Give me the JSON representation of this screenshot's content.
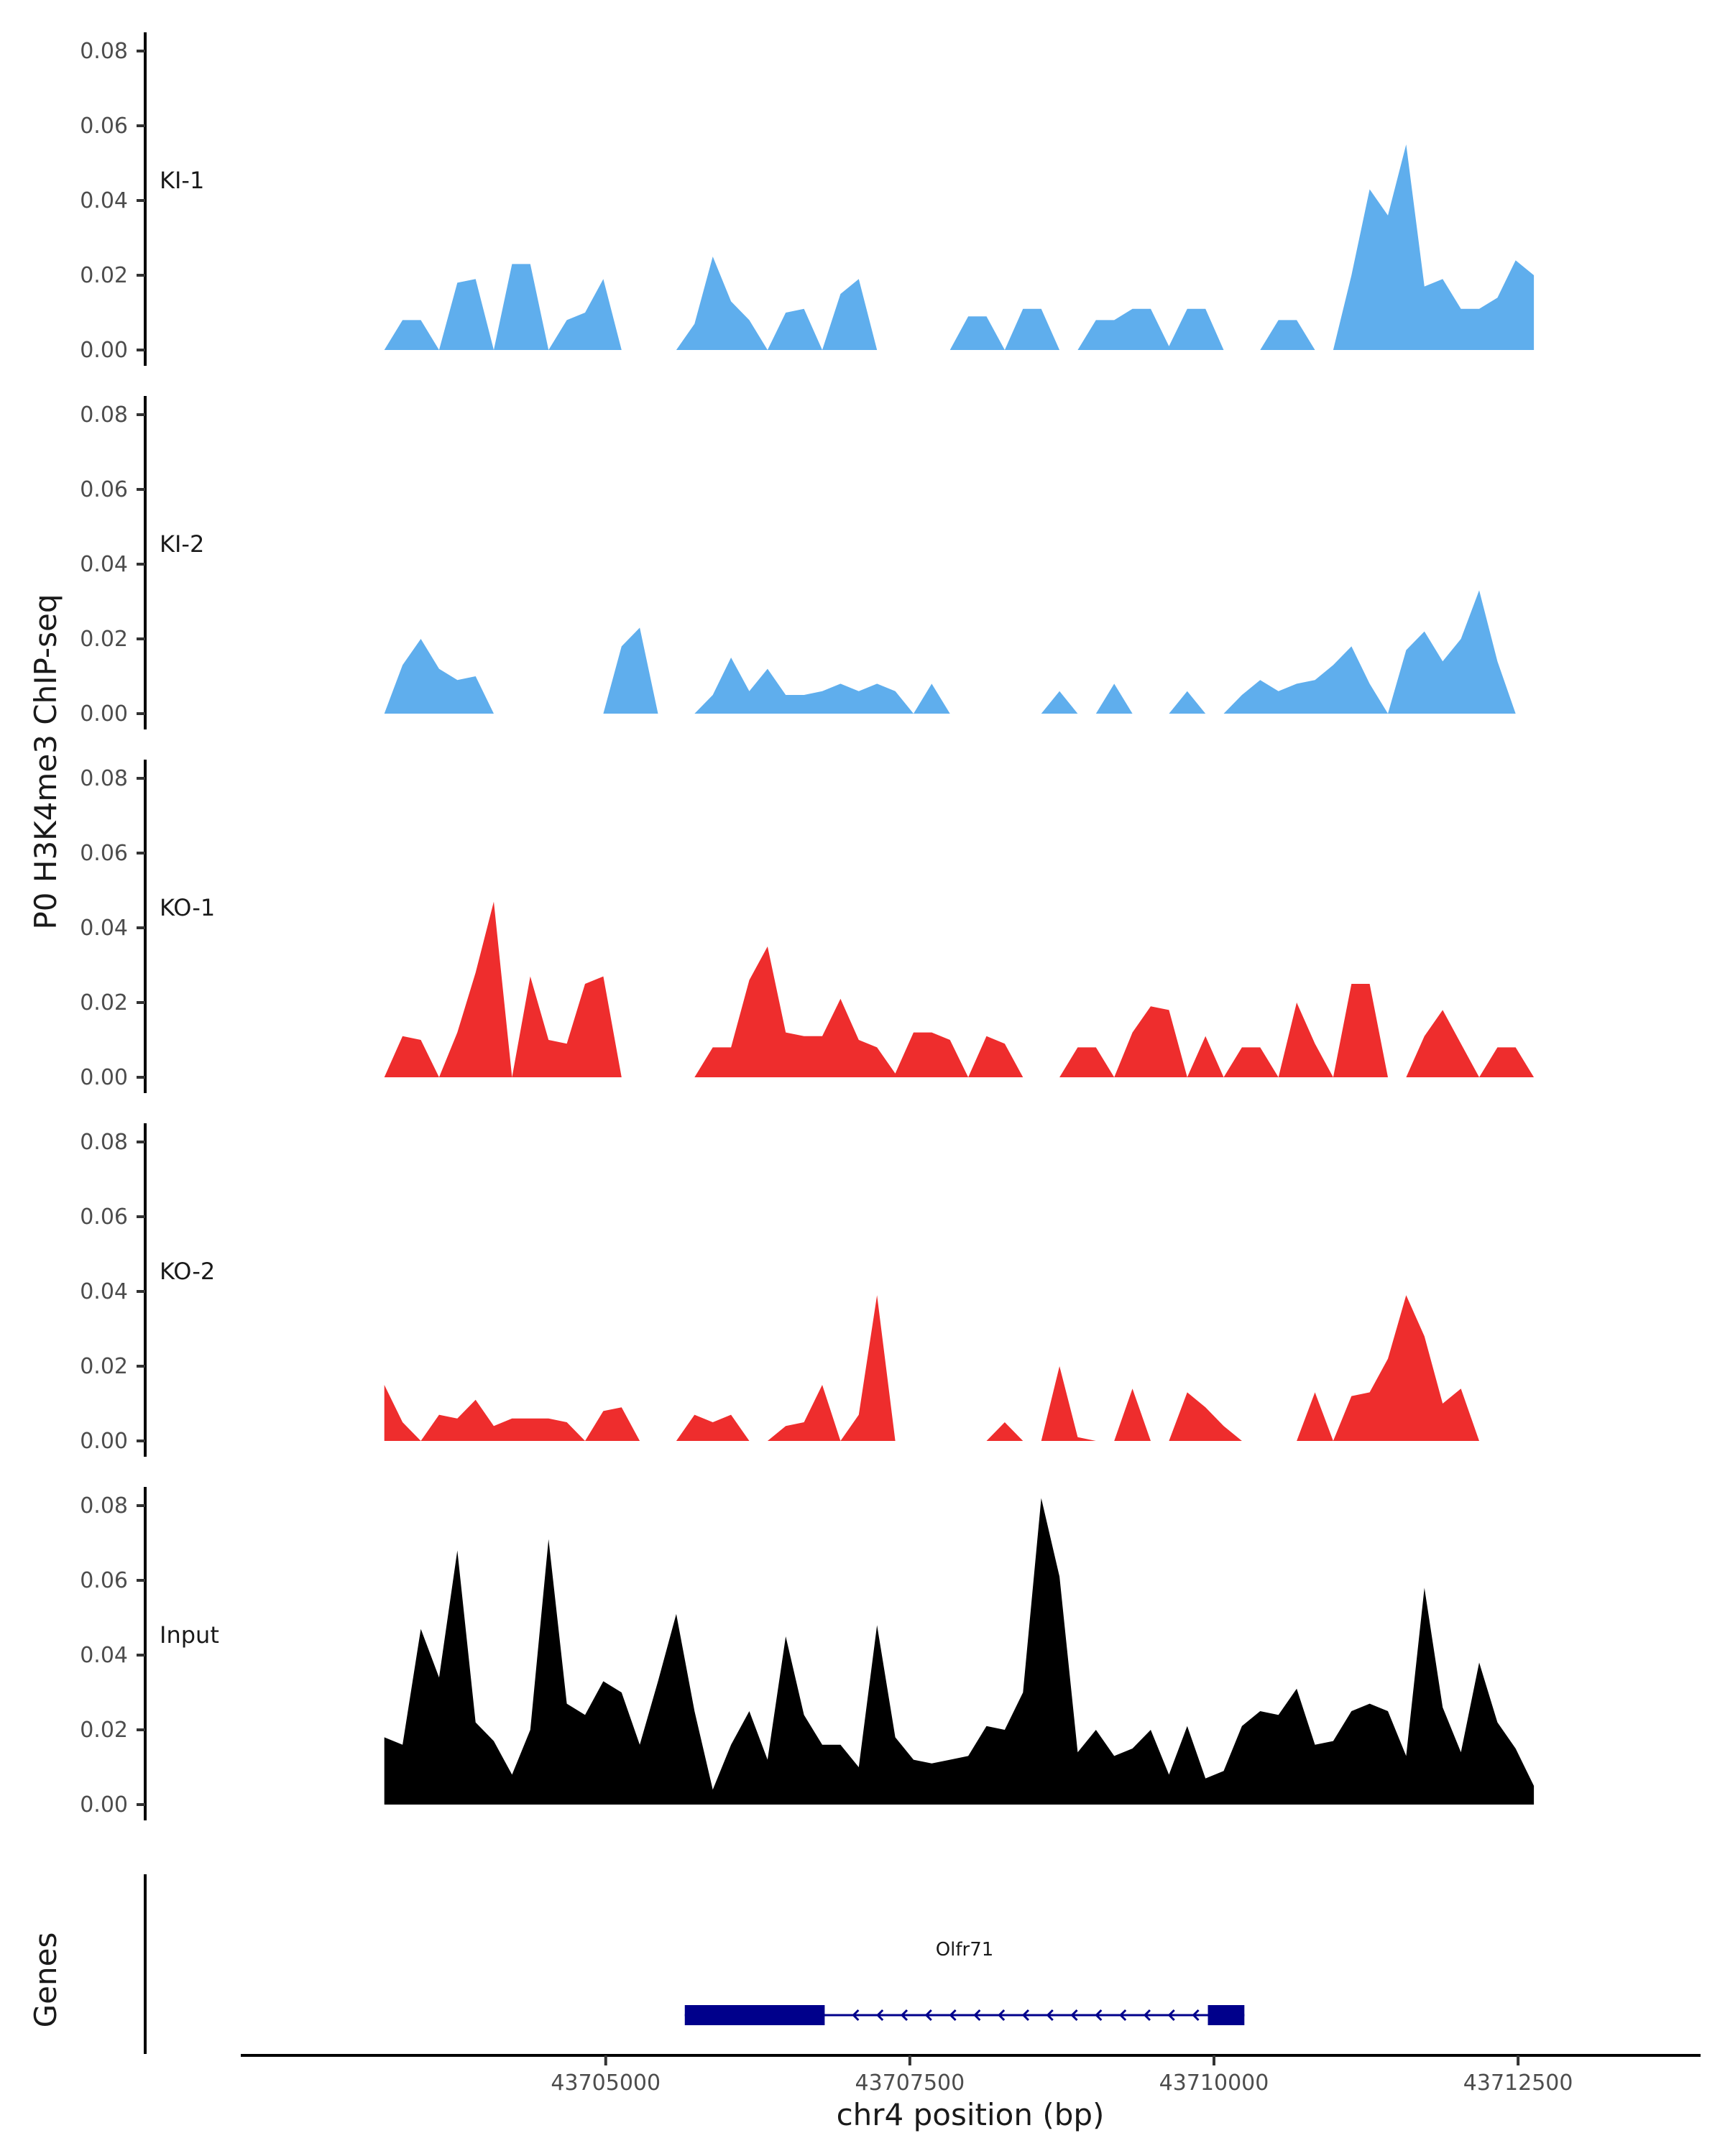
{
  "chart_data": {
    "type": "area",
    "ylabel": "P0 H3K4me3 ChIP-seq",
    "xlabel": "chr4 position (bp)",
    "xlim": [
      43702000,
      43714000
    ],
    "ylim": [
      0,
      0.085
    ],
    "yticks": [
      "0.00",
      "0.02",
      "0.04",
      "0.06",
      "0.08"
    ],
    "xticks": [
      {
        "value": 43705000,
        "label": "43705000"
      },
      {
        "value": 43707500,
        "label": "43707500"
      },
      {
        "value": 43710000,
        "label": "43710000"
      },
      {
        "value": 43712500,
        "label": "43712500"
      }
    ],
    "colors": {
      "KI": "#5faeed",
      "KO": "#ee2d2d",
      "Input": "#000000",
      "gene": "#00008b"
    },
    "tracks": [
      {
        "name": "KI-1",
        "color": "#5faeed",
        "x": [
          43703180,
          43703330,
          43703480,
          43703630,
          43703780,
          43703930,
          43704080,
          43704230,
          43704380,
          43704530,
          43704680,
          43704830,
          43704980,
          43705130,
          43705280,
          43705430,
          43705580,
          43705730,
          43705880,
          43706030,
          43706180,
          43706330,
          43706480,
          43706630,
          43706780,
          43706930,
          43707080,
          43707230,
          43707380,
          43707530,
          43707680,
          43707830,
          43707980,
          43708130,
          43708280,
          43708430,
          43708580,
          43708730,
          43708880,
          43709030,
          43709180,
          43709330,
          43709480,
          43709630,
          43709780,
          43709930,
          43710080,
          43710230,
          43710380,
          43710530,
          43710680,
          43710830,
          43710980,
          43711130,
          43711280,
          43711430,
          43711580,
          43711730,
          43711880,
          43712030,
          43712180,
          43712330,
          43712480,
          43712630
        ],
        "y": [
          0,
          0.008,
          0.008,
          0,
          0.018,
          0.019,
          0,
          0.023,
          0.023,
          0,
          0.008,
          0.01,
          0.019,
          0,
          0,
          0,
          0,
          0.007,
          0.025,
          0.013,
          0.008,
          0,
          0.01,
          0.011,
          0,
          0.015,
          0.019,
          0,
          0,
          0,
          0,
          0,
          0.009,
          0.009,
          0,
          0.011,
          0.011,
          0,
          0,
          0.008,
          0.008,
          0.011,
          0.011,
          0.001,
          0.011,
          0.011,
          0,
          0,
          0,
          0.008,
          0.008,
          0,
          0,
          0.02,
          0.043,
          0.036,
          0.055,
          0.017,
          0.019,
          0.011,
          0.011,
          0.014,
          0.024,
          0.02
        ]
      },
      {
        "name": "KI-2",
        "color": "#5faeed",
        "x": [
          43703180,
          43703330,
          43703480,
          43703630,
          43703780,
          43703930,
          43704080,
          43704230,
          43704380,
          43704530,
          43704680,
          43704830,
          43704980,
          43705130,
          43705280,
          43705430,
          43705580,
          43705730,
          43705880,
          43706030,
          43706180,
          43706330,
          43706480,
          43706630,
          43706780,
          43706930,
          43707080,
          43707230,
          43707380,
          43707530,
          43707680,
          43707830,
          43707980,
          43708130,
          43708280,
          43708430,
          43708580,
          43708730,
          43708880,
          43709030,
          43709180,
          43709330,
          43709480,
          43709630,
          43709780,
          43709930,
          43710080,
          43710230,
          43710380,
          43710530,
          43710680,
          43710830,
          43710980,
          43711130,
          43711280,
          43711430,
          43711580,
          43711730,
          43711880,
          43712030,
          43712180,
          43712330,
          43712480,
          43712630
        ],
        "y": [
          0,
          0.013,
          0.02,
          0.012,
          0.009,
          0.01,
          0,
          0,
          0,
          0,
          0,
          0,
          0,
          0.018,
          0.023,
          0,
          0,
          0,
          0.005,
          0.015,
          0.006,
          0.012,
          0.005,
          0.005,
          0.006,
          0.008,
          0.006,
          0.008,
          0.006,
          0,
          0.008,
          0,
          0,
          0,
          0,
          0,
          0,
          0.006,
          0,
          0,
          0.008,
          0,
          0,
          0,
          0.006,
          0,
          0,
          0.005,
          0.009,
          0.006,
          0.008,
          0.009,
          0.013,
          0.018,
          0.008,
          0,
          0.017,
          0.022,
          0.014,
          0.02,
          0.033,
          0.014,
          0,
          0
        ]
      },
      {
        "name": "KO-1",
        "color": "#ee2d2d",
        "x": [
          43703180,
          43703330,
          43703480,
          43703630,
          43703780,
          43703930,
          43704080,
          43704230,
          43704380,
          43704530,
          43704680,
          43704830,
          43704980,
          43705130,
          43705280,
          43705430,
          43705580,
          43705730,
          43705880,
          43706030,
          43706180,
          43706330,
          43706480,
          43706630,
          43706780,
          43706930,
          43707080,
          43707230,
          43707380,
          43707530,
          43707680,
          43707830,
          43707980,
          43708130,
          43708280,
          43708430,
          43708580,
          43708730,
          43708880,
          43709030,
          43709180,
          43709330,
          43709480,
          43709630,
          43709780,
          43709930,
          43710080,
          43710230,
          43710380,
          43710530,
          43710680,
          43710830,
          43710980,
          43711130,
          43711280,
          43711430,
          43711580,
          43711730,
          43711880,
          43712030,
          43712180,
          43712330,
          43712480,
          43712630
        ],
        "y": [
          0,
          0.011,
          0.01,
          0,
          0.012,
          0.028,
          0.047,
          0,
          0.027,
          0.01,
          0.009,
          0.025,
          0.027,
          0,
          0,
          0,
          0,
          0,
          0.008,
          0.008,
          0.026,
          0.035,
          0.012,
          0.011,
          0.011,
          0.021,
          0.01,
          0.008,
          0.001,
          0.012,
          0.012,
          0.01,
          0,
          0.011,
          0.009,
          0,
          0,
          0,
          0.008,
          0.008,
          0,
          0.012,
          0.019,
          0.018,
          0,
          0.011,
          0,
          0.008,
          0.008,
          0,
          0.02,
          0.009,
          0,
          0.025,
          0.025,
          0,
          0,
          0.011,
          0.018,
          0.009,
          0,
          0.008,
          0.008,
          0
        ]
      },
      {
        "name": "KO-2",
        "color": "#ee2d2d",
        "x": [
          43703180,
          43703330,
          43703480,
          43703630,
          43703780,
          43703930,
          43704080,
          43704230,
          43704380,
          43704530,
          43704680,
          43704830,
          43704980,
          43705130,
          43705280,
          43705430,
          43705580,
          43705730,
          43705880,
          43706030,
          43706180,
          43706330,
          43706480,
          43706630,
          43706780,
          43706930,
          43707080,
          43707230,
          43707380,
          43707530,
          43707680,
          43707830,
          43707980,
          43708130,
          43708280,
          43708430,
          43708580,
          43708730,
          43708880,
          43709030,
          43709180,
          43709330,
          43709480,
          43709630,
          43709780,
          43709930,
          43710080,
          43710230,
          43710380,
          43710530,
          43710680,
          43710830,
          43710980,
          43711130,
          43711280,
          43711430,
          43711580,
          43711730,
          43711880,
          43712030,
          43712180,
          43712330,
          43712480,
          43712630
        ],
        "y": [
          0.015,
          0.005,
          0,
          0.007,
          0.006,
          0.011,
          0.004,
          0.006,
          0.006,
          0.006,
          0.005,
          0,
          0.008,
          0.009,
          0,
          0,
          0,
          0.007,
          0.005,
          0.007,
          0,
          0,
          0.004,
          0.005,
          0.015,
          0,
          0.007,
          0.039,
          0,
          0,
          0,
          0,
          0,
          0,
          0.005,
          0,
          0,
          0.02,
          0.001,
          0,
          0,
          0.014,
          0,
          0,
          0.013,
          0.009,
          0.004,
          0,
          0,
          0,
          0,
          0.013,
          0,
          0.012,
          0.013,
          0.022,
          0.039,
          0.028,
          0.01,
          0.014,
          0,
          0,
          0,
          0
        ]
      },
      {
        "name": "Input",
        "color": "#000000",
        "x": [
          43703180,
          43703330,
          43703480,
          43703630,
          43703780,
          43703930,
          43704080,
          43704230,
          43704380,
          43704530,
          43704680,
          43704830,
          43704980,
          43705130,
          43705280,
          43705430,
          43705580,
          43705730,
          43705880,
          43706030,
          43706180,
          43706330,
          43706480,
          43706630,
          43706780,
          43706930,
          43707080,
          43707230,
          43707380,
          43707530,
          43707680,
          43707830,
          43707980,
          43708130,
          43708280,
          43708430,
          43708580,
          43708730,
          43708880,
          43709030,
          43709180,
          43709330,
          43709480,
          43709630,
          43709780,
          43709930,
          43710080,
          43710230,
          43710380,
          43710530,
          43710680,
          43710830,
          43710980,
          43711130,
          43711280,
          43711430,
          43711580,
          43711730,
          43711880,
          43712030,
          43712180,
          43712330,
          43712480,
          43712630
        ],
        "y": [
          0.018,
          0.016,
          0.047,
          0.034,
          0.068,
          0.022,
          0.017,
          0.008,
          0.02,
          0.071,
          0.027,
          0.024,
          0.033,
          0.03,
          0.016,
          0.033,
          0.051,
          0.025,
          0.004,
          0.016,
          0.025,
          0.012,
          0.045,
          0.024,
          0.016,
          0.016,
          0.01,
          0.048,
          0.018,
          0.012,
          0.011,
          0.012,
          0.013,
          0.021,
          0.02,
          0.03,
          0.082,
          0.061,
          0.014,
          0.02,
          0.013,
          0.015,
          0.02,
          0.008,
          0.021,
          0.007,
          0.009,
          0.021,
          0.025,
          0.024,
          0.031,
          0.016,
          0.017,
          0.025,
          0.027,
          0.025,
          0.013,
          0.058,
          0.026,
          0.014,
          0.038,
          0.022,
          0.015,
          0.005
        ]
      }
    ],
    "genes_label": "Genes",
    "gene": {
      "name": "Olfr71",
      "start": 43705650,
      "end": 43710250,
      "strand": "-",
      "utr_left_end": 43706800,
      "utr_right_start": 43709950
    }
  }
}
